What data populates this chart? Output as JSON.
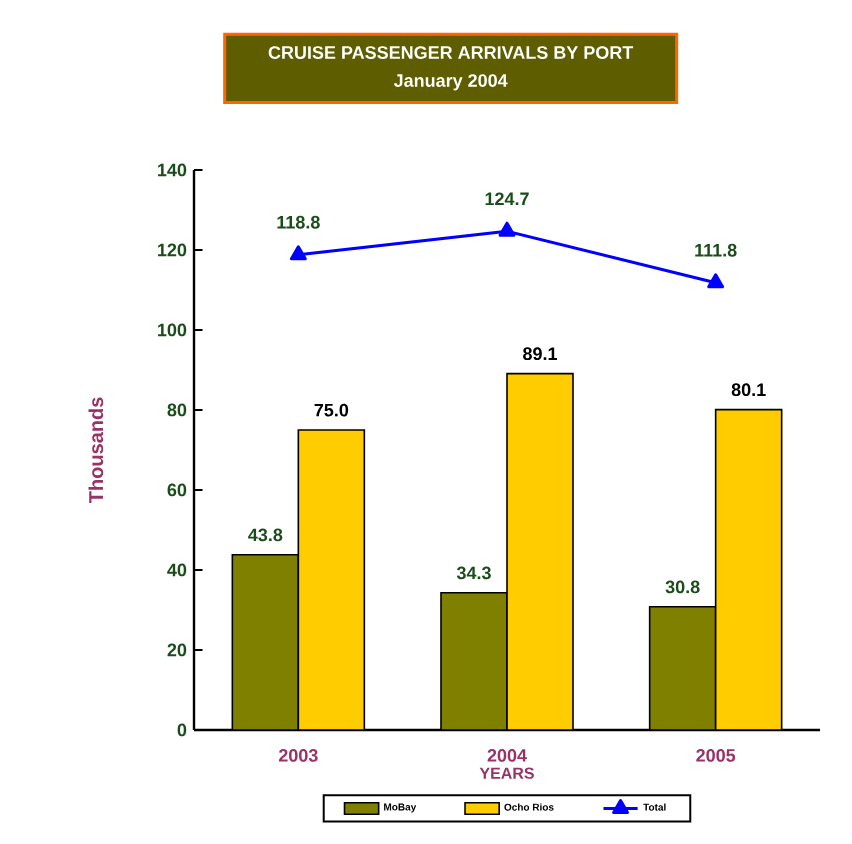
{
  "chart_data": {
    "type": "bar",
    "title": "CRUISE PASSENGER ARRIVALS BY PORT",
    "subtitle": "January 2004",
    "xlabel": "YEARS",
    "ylabel": "Thousands",
    "categories": [
      "2003",
      "2004",
      "2005"
    ],
    "series": [
      {
        "name": "MoBay",
        "color": "#808000",
        "values": [
          43.8,
          34.3,
          30.8
        ],
        "value_labels": [
          "43.8",
          "34.3",
          "30.8"
        ]
      },
      {
        "name": "Ocho Rios",
        "color": "#ffcc00",
        "values": [
          75.0,
          89.1,
          80.1
        ],
        "value_labels": [
          "75.0",
          "89.1",
          "80.1"
        ]
      },
      {
        "name": "Total",
        "type": "line",
        "color": "#0000ff",
        "marker": "triangle",
        "values": [
          118.8,
          124.7,
          111.8
        ],
        "value_labels": [
          "118.8",
          "124.7",
          "111.8"
        ]
      }
    ],
    "ylim": [
      0,
      140
    ],
    "yticks": [
      0,
      20,
      40,
      60,
      80,
      100,
      120,
      140
    ],
    "legend": "bottom"
  }
}
